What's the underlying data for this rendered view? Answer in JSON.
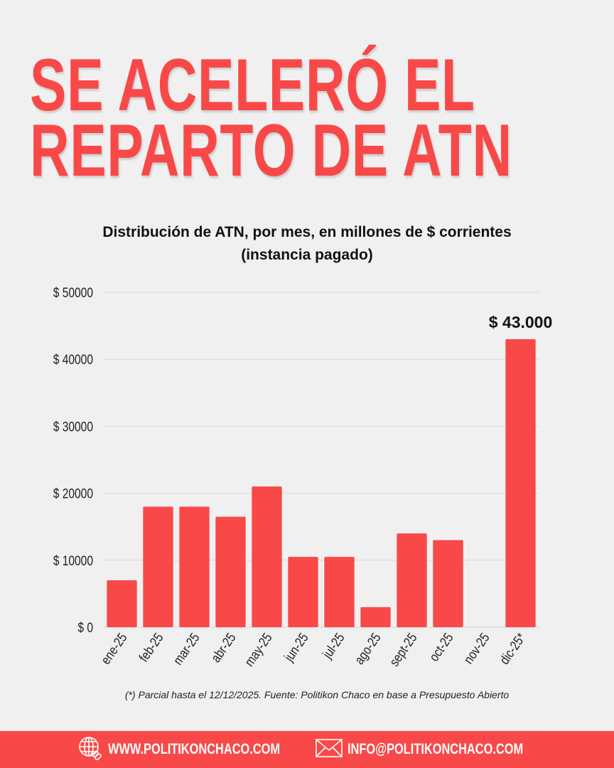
{
  "headline": {
    "line1": "SE ACELERÓ EL",
    "line2": "REPARTO DE ATN"
  },
  "chart_data": {
    "type": "bar",
    "title": "Distribución de ATN, por mes, en millones de $ corrientes",
    "subtitle": "(instancia pagado)",
    "categories": [
      "ene-25",
      "feb-25",
      "mar-25",
      "abr-25",
      "may-25",
      "jun-25",
      "jul-25",
      "ago-25",
      "sept-25",
      "oct-25",
      "nov-25",
      "dic-25*"
    ],
    "values": [
      7000,
      18000,
      18000,
      16500,
      21000,
      10500,
      10500,
      3000,
      14000,
      13000,
      0,
      43000
    ],
    "ylim": [
      0,
      50000
    ],
    "yticks": [
      0,
      10000,
      20000,
      30000,
      40000,
      50000
    ],
    "ytick_labels": [
      "$ 0",
      "$ 10000",
      "$ 20000",
      "$ 30000",
      "$ 40000",
      "$ 50000"
    ],
    "annotation": {
      "category": "dic-25*",
      "text": "$ 43.000"
    },
    "grid": true,
    "bar_color": "#f94848"
  },
  "note": "(*) Parcial hasta el 12/12/2025. Fuente: Politikon Chaco en base a Presupuesto Abierto",
  "footer": {
    "website": "WWW.POLITIKONCHACO.COM",
    "email": "INFO@POLITIKONCHACO.COM",
    "website_icon": "globe-link-icon",
    "email_icon": "envelope-icon",
    "color": "#f94848"
  }
}
